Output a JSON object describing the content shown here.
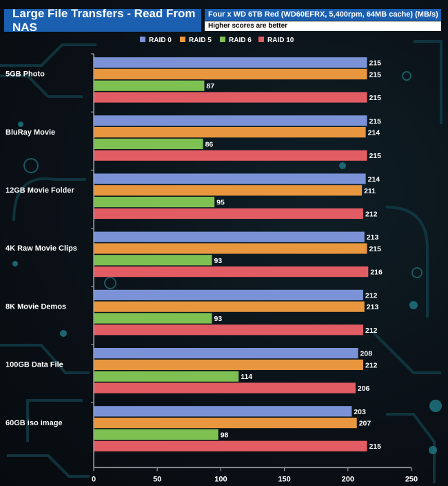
{
  "header": {
    "title": "Large File Transfers - Read From NAS",
    "subtitle": "Four x WD 6TB Red (WD60EFRX, 5,400rpm, 64MB cache) (MB/s)",
    "note": "Higher scores are better"
  },
  "colors": {
    "raid0": "#7b93d6",
    "raid5": "#e8973f",
    "raid6": "#7ec052",
    "raid10": "#e25d63",
    "title_bg": "#1b5fb0",
    "background": "#0b1117"
  },
  "chart_data": {
    "type": "bar",
    "orientation": "horizontal",
    "categories": [
      "5GB Photo",
      "BluRay Movie",
      "12GB Movie Folder",
      "4K Raw Movie Clips",
      "8K Movie Demos",
      "100GB  Data File",
      "60GB iso image"
    ],
    "series": [
      {
        "name": "RAID 0",
        "color": "#7b93d6",
        "values": [
          215,
          215,
          214,
          213,
          212,
          208,
          203
        ]
      },
      {
        "name": "RAID 5",
        "color": "#e8973f",
        "values": [
          215,
          214,
          211,
          215,
          213,
          212,
          207
        ]
      },
      {
        "name": "RAID 6",
        "color": "#7ec052",
        "values": [
          87,
          86,
          95,
          93,
          93,
          114,
          98
        ]
      },
      {
        "name": "RAID 10",
        "color": "#e25d63",
        "values": [
          215,
          215,
          212,
          216,
          212,
          206,
          215
        ]
      }
    ],
    "xlim": [
      0,
      250
    ],
    "ticks": [
      "0",
      "50",
      "100",
      "150",
      "200",
      "250"
    ],
    "legend_position": "top",
    "grid": false
  }
}
